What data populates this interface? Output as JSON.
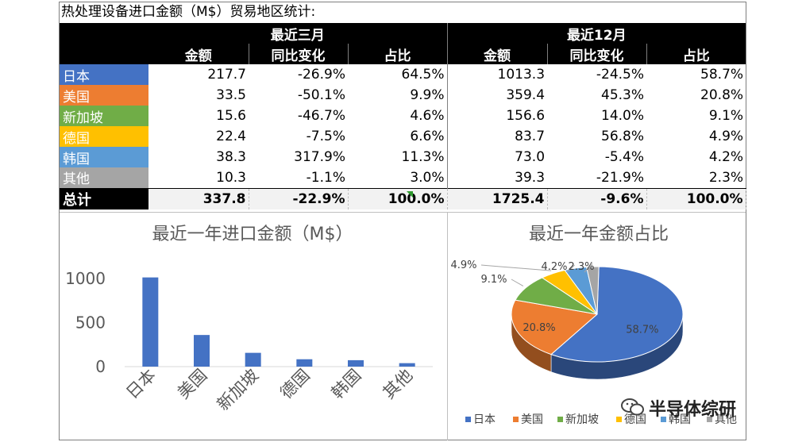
{
  "title": "热处理设备进口金额（M$）贸易地区统计:",
  "table": {
    "group_headers": [
      "最近三月",
      "最近12月"
    ],
    "col_headers": [
      "金额",
      "同比变化",
      "占比",
      "金额",
      "同比变化",
      "占比"
    ],
    "rows": [
      {
        "region": "日本",
        "color": "#4472c4",
        "cells": [
          "217.7",
          "-26.9%",
          "64.5%",
          "1013.3",
          "-24.5%",
          "58.7%"
        ]
      },
      {
        "region": "美国",
        "color": "#ed7d31",
        "cells": [
          "33.5",
          "-50.1%",
          "9.9%",
          "359.4",
          "45.3%",
          "20.8%"
        ]
      },
      {
        "region": "新加坡",
        "color": "#70ad47",
        "cells": [
          "15.6",
          "-46.7%",
          "4.6%",
          "156.6",
          "14.0%",
          "9.1%"
        ]
      },
      {
        "region": "德国",
        "color": "#ffc000",
        "cells": [
          "22.4",
          "-7.5%",
          "6.6%",
          "83.7",
          "56.8%",
          "4.9%"
        ]
      },
      {
        "region": "韩国",
        "color": "#5b9bd5",
        "cells": [
          "38.3",
          "317.9%",
          "11.3%",
          "73.0",
          "-5.4%",
          "4.2%"
        ]
      },
      {
        "region": "其他",
        "color": "#a5a5a5",
        "cells": [
          "10.3",
          "-1.1%",
          "3.0%",
          "39.3",
          "-21.9%",
          "2.3%"
        ]
      }
    ],
    "total": {
      "region": "总计",
      "cells": [
        "337.8",
        "-22.9%",
        "100.0%",
        "1725.4",
        "-9.6%",
        "100.0%"
      ]
    }
  },
  "chart_data": [
    {
      "type": "bar",
      "title": "最近一年进口金额（M$）",
      "categories": [
        "日本",
        "美国",
        "新加坡",
        "德国",
        "韩国",
        "其他"
      ],
      "values": [
        1013.3,
        359.4,
        156.6,
        83.7,
        73.0,
        39.3
      ],
      "yticks": [
        "0",
        "500",
        "1000"
      ],
      "ylim": [
        0,
        1100
      ],
      "color": "#4472c4",
      "grid": false
    },
    {
      "type": "pie",
      "title": "最近一年金额占比",
      "labels": [
        "日本",
        "美国",
        "新加坡",
        "德国",
        "韩国",
        "其他"
      ],
      "values": [
        58.7,
        20.8,
        9.1,
        4.9,
        4.2,
        2.3
      ],
      "data_labels": [
        "58.7%",
        "20.8%",
        "9.1%",
        "4.9%",
        "4.2%",
        "2.3%"
      ],
      "colors": [
        "#4472c4",
        "#ed7d31",
        "#70ad47",
        "#ffc000",
        "#5b9bd5",
        "#a5a5a5"
      ],
      "legend_position": "bottom"
    }
  ],
  "watermark": "半导体综研"
}
